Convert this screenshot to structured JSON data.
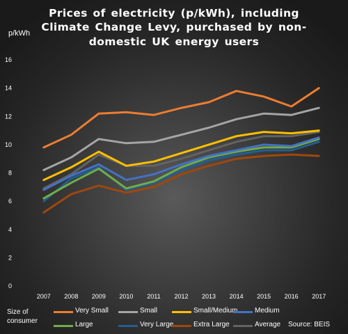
{
  "chart_data": {
    "type": "line",
    "title_lines": [
      "Prices of electricity (p/kWh), including",
      "Climate Change Levy, purchased by non-",
      "domestic UK energy users"
    ],
    "ylabel": "p/kWh",
    "ylim": [
      0,
      16
    ],
    "yticks": [
      "0",
      "2",
      "4",
      "6",
      "8",
      "10",
      "12",
      "14",
      "16"
    ],
    "x": [
      "2007",
      "2008",
      "2009",
      "2010",
      "2011",
      "2012",
      "2013",
      "2014",
      "2015",
      "2016",
      "2017"
    ],
    "grid": false,
    "legend_title": "Size of consumer",
    "legend_placement": "bottom",
    "source": "Source: BEIS",
    "series": [
      {
        "name": "Very Small",
        "color": "#ed7d31",
        "values": [
          9.8,
          10.7,
          12.2,
          12.3,
          12.1,
          12.6,
          13.0,
          13.8,
          13.4,
          12.7,
          14.0
        ]
      },
      {
        "name": "Small",
        "color": "#a5a5a5",
        "values": [
          8.2,
          9.1,
          10.4,
          10.1,
          10.2,
          10.7,
          11.2,
          11.8,
          12.2,
          12.1,
          12.6
        ]
      },
      {
        "name": "Small/Medium",
        "color": "#ffc000",
        "values": [
          7.5,
          8.4,
          9.5,
          8.5,
          8.8,
          9.4,
          10.0,
          10.6,
          10.9,
          10.8,
          11.0
        ]
      },
      {
        "name": "Medium",
        "color": "#4472c4",
        "values": [
          6.8,
          7.8,
          8.6,
          7.5,
          7.9,
          8.6,
          9.2,
          9.6,
          10.0,
          9.9,
          10.5
        ]
      },
      {
        "name": "Large",
        "color": "#70ad47",
        "values": [
          6.2,
          7.3,
          8.3,
          6.9,
          7.4,
          8.4,
          9.1,
          9.5,
          9.8,
          9.8,
          10.4
        ]
      },
      {
        "name": "Very Large",
        "color": "#255e91",
        "values": [
          6.0,
          7.6,
          8.4,
          6.8,
          7.3,
          8.2,
          8.9,
          9.3,
          9.6,
          9.6,
          10.2
        ]
      },
      {
        "name": "Extra Large",
        "color": "#9e480e",
        "values": [
          5.2,
          6.5,
          7.1,
          6.6,
          7.0,
          7.9,
          8.5,
          9.0,
          9.2,
          9.3,
          9.2
        ]
      },
      {
        "name": "Average",
        "color": "#636363",
        "values": [
          6.9,
          7.9,
          9.3,
          8.5,
          8.5,
          9.0,
          9.6,
          10.2,
          10.6,
          10.6,
          10.9
        ]
      }
    ]
  }
}
